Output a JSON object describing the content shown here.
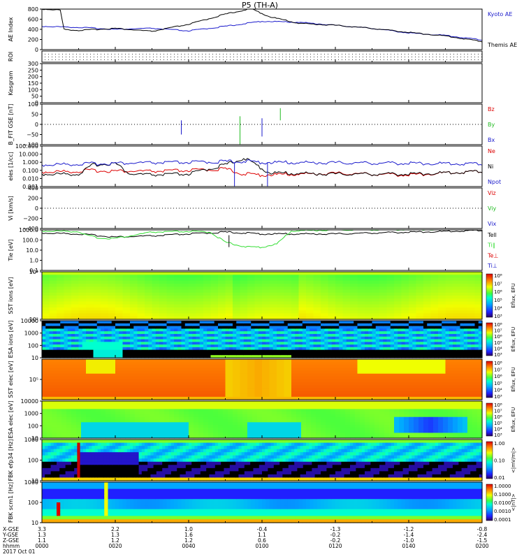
{
  "title": "P5 (TH-A)",
  "footer": {
    "row_labels": [
      "X-GSE",
      "Y-GSE",
      "Z-GSE",
      "hhmm",
      "2017 Oct 01"
    ],
    "columns": [
      {
        "vals": [
          "3.3",
          "1.3",
          "1.1",
          "0000"
        ]
      },
      {
        "vals": [
          "2.2",
          "1.3",
          "1.2",
          "0020"
        ]
      },
      {
        "vals": [
          "1.0",
          "1.6",
          "1.2",
          "0040"
        ]
      },
      {
        "vals": [
          "-0.4",
          "1.1",
          "0.6",
          "0100"
        ]
      },
      {
        "vals": [
          "-1.3",
          "-0.2",
          "-0.2",
          "0120"
        ]
      },
      {
        "vals": [
          "-1.2",
          "-1.4",
          "-1.0",
          "0140"
        ]
      },
      {
        "vals": [
          "-0.8",
          "-2.4",
          "-1.5",
          "0200"
        ]
      }
    ]
  },
  "colors": {
    "kyoto": "#1a1acc",
    "themis": "#000000",
    "red": "#dd0000",
    "green": "#22bb22",
    "blue": "#1a1acc",
    "tell": "#000000",
    "ti_green": "#33dd33"
  },
  "chart_data": [
    {
      "type": "line",
      "panel": "AE",
      "ylabel": "AE Index",
      "ylim": [
        0,
        800
      ],
      "yticks": [
        "0",
        "200",
        "400",
        "600",
        "800"
      ],
      "series": [
        {
          "name": "Kyoto AE",
          "color": "#1a1acc",
          "x_min": [
            0,
            10,
            20,
            30,
            40,
            50,
            60,
            70,
            80,
            90,
            100,
            110,
            120
          ],
          "values": [
            460,
            440,
            400,
            420,
            370,
            460,
            560,
            540,
            480,
            420,
            330,
            280,
            190
          ]
        },
        {
          "name": "Themis AE",
          "color": "#000000",
          "x_min": [
            0,
            3,
            5,
            6,
            10,
            20,
            30,
            40,
            50,
            57,
            62,
            70,
            80,
            90,
            100,
            110,
            120
          ],
          "values": [
            800,
            790,
            780,
            400,
            380,
            420,
            360,
            500,
            700,
            810,
            650,
            520,
            480,
            420,
            340,
            270,
            160
          ]
        }
      ]
    },
    {
      "type": "scatter",
      "panel": "ROI",
      "ylabel": "ROI",
      "yticks": []
    },
    {
      "type": "line",
      "panel": "Kesgram",
      "ylabel": "Kesgram",
      "ylim": [
        0,
        300
      ],
      "yticks": [
        "0",
        "50",
        "100",
        "150",
        "200",
        "250",
        "300"
      ]
    },
    {
      "type": "line",
      "panel": "B_FIT",
      "ylabel": "B_FIT GSE [nT]",
      "ylim": [
        -100,
        100
      ],
      "yticks": [
        "−100",
        "−50",
        "0",
        "50",
        "100"
      ],
      "series": [
        {
          "name": "Bz",
          "color": "#dd0000"
        },
        {
          "name": "By",
          "color": "#22bb22"
        },
        {
          "name": "Bx",
          "color": "#1a1acc"
        }
      ]
    },
    {
      "type": "line",
      "panel": "Density",
      "ylabel": "eles [1/cc]",
      "scale": "log",
      "ylim": [
        0.001,
        100000
      ],
      "yticks": [
        "0.001",
        "0.010",
        "0.100",
        "1.000",
        "10.000",
        "100.000"
      ],
      "series": [
        {
          "name": "Ne",
          "color": "#dd0000",
          "x_min": [
            0,
            10,
            12,
            20,
            30,
            40,
            50,
            55,
            60,
            70,
            80,
            90,
            100,
            110,
            120
          ],
          "values": [
            0.8,
            1.0,
            1.5,
            1.2,
            1.0,
            1.5,
            3.0,
            0.3,
            0.2,
            0.3,
            0.4,
            0.3,
            0.2,
            0.5,
            1.0
          ]
        },
        {
          "name": "Ni",
          "color": "#000000",
          "x_min": [
            0,
            10,
            14,
            20,
            24,
            30,
            40,
            50,
            55,
            58,
            62,
            70,
            80,
            90,
            100,
            110,
            120
          ],
          "values": [
            0.3,
            0.3,
            20,
            40,
            0.3,
            0.2,
            0.3,
            20,
            400,
            30,
            0.5,
            0.4,
            0.3,
            0.3,
            0.3,
            0.5,
            1.0
          ]
        },
        {
          "name": "Npot",
          "color": "#1a1acc",
          "x_min": [
            0,
            20,
            40,
            55,
            60,
            80,
            100,
            120
          ],
          "values": [
            20,
            40,
            60,
            100,
            60,
            50,
            40,
            30
          ]
        }
      ]
    },
    {
      "type": "line",
      "panel": "Velocity",
      "ylabel": "Vi [km/s]",
      "ylim": [
        -400,
        400
      ],
      "yticks": [
        "−400",
        "−200",
        "0",
        "200",
        "400"
      ],
      "series": [
        {
          "name": "Viz",
          "color": "#dd0000"
        },
        {
          "name": "Viy",
          "color": "#22bb22"
        },
        {
          "name": "Vix",
          "color": "#1a1acc"
        }
      ]
    },
    {
      "type": "line",
      "panel": "Temperature",
      "ylabel": "Tie [eV]",
      "scale": "log",
      "ylim": [
        0.1,
        1000
      ],
      "yticks": [
        "0.1",
        "1.0",
        "10.0",
        "100.0",
        "1000.0"
      ],
      "series": [
        {
          "name": "Tell",
          "color": "#000000",
          "x_min": [
            0,
            10,
            20,
            30,
            40,
            50,
            55,
            60,
            70,
            80,
            90,
            100,
            110,
            120
          ],
          "values": [
            500,
            400,
            200,
            250,
            400,
            600,
            500,
            400,
            400,
            400,
            500,
            600,
            700,
            900
          ]
        },
        {
          "name": "Ti∥",
          "color": "#33dd33",
          "x_min": [
            0,
            10,
            12,
            16,
            20,
            24,
            30,
            40,
            46,
            50,
            56,
            60,
            64,
            68,
            80,
            100,
            120
          ],
          "values": [
            800,
            700,
            300,
            150,
            150,
            250,
            600,
            700,
            600,
            60,
            20,
            20,
            40,
            800,
            1000,
            1100,
            1200
          ]
        },
        {
          "name": "Te⊥",
          "color": "#dd0000"
        },
        {
          "name": "Ti⊥",
          "color": "#1a1acc"
        }
      ]
    },
    {
      "type": "heatmap",
      "panel": "SST ion",
      "ylabel": "SST ions [eV]",
      "yticks": [
        "10²",
        "10⁴"
      ],
      "cbar_label": "Eflux, EFU",
      "cbar_ticks": [
        "10³",
        "10⁴",
        "10⁵",
        "10⁶",
        "10⁷",
        "10⁸"
      ]
    },
    {
      "type": "heatmap",
      "panel": "ESA ion",
      "ylabel": "ESA ions [eV]",
      "yticks": [
        "10",
        "100",
        "1000",
        "10000"
      ],
      "cbar_label": "Eflux, EFU",
      "cbar_ticks": [
        "10³",
        "10⁴",
        "10⁵",
        "10⁶",
        "10⁷",
        "10⁸"
      ]
    },
    {
      "type": "heatmap",
      "panel": "SST elec",
      "ylabel": "SST elec [eV]",
      "yticks": [
        "10⁵"
      ],
      "cbar_label": "Eflux, EFU",
      "cbar_ticks": [
        "10³",
        "10⁴",
        "10⁵",
        "10⁶",
        "10⁷",
        "10⁸"
      ]
    },
    {
      "type": "heatmap",
      "panel": "ESA elec",
      "ylabel": "ESA elec [eV]",
      "yticks": [
        "10",
        "100",
        "1000",
        "10000"
      ],
      "cbar_label": "Eflux, EFU",
      "cbar_ticks": [
        "10³",
        "10⁴",
        "10⁵",
        "10⁶",
        "10⁷",
        "10⁸"
      ]
    },
    {
      "type": "heatmap",
      "panel": "FBK E",
      "ylabel": "FBK efp34 [Hz]",
      "yticks": [
        "10",
        "100",
        "1000"
      ],
      "cbar_label": "<|mV/m|>",
      "cbar_ticks": [
        "0.01",
        "0.10",
        "1.00"
      ]
    },
    {
      "type": "heatmap",
      "panel": "FBK B",
      "ylabel": "FBK scm1 [Hz]",
      "yticks": [
        "10",
        "100",
        "1000"
      ],
      "cbar_label": "<|nT|>",
      "cbar_ticks": [
        "0.0001",
        "0.0010",
        "0.0100",
        "0.1000",
        "1.0000"
      ]
    }
  ]
}
